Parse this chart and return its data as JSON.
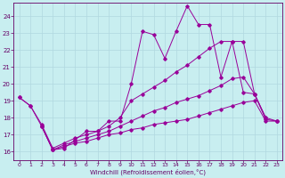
{
  "xlabel": "Windchill (Refroidissement éolien,°C)",
  "background_color": "#c8eef0",
  "grid_color": "#b0d8e0",
  "line_color": "#990099",
  "xlim": [
    -0.5,
    23.5
  ],
  "ylim": [
    15.5,
    24.8
  ],
  "yticks": [
    16,
    17,
    18,
    19,
    20,
    21,
    22,
    23,
    24
  ],
  "line1_x": [
    0,
    1,
    2,
    3,
    4,
    5,
    6,
    7,
    8,
    9,
    10,
    11,
    12,
    13,
    14,
    15,
    16,
    17,
    18,
    19,
    20,
    21,
    22
  ],
  "line1_y": [
    19.2,
    18.7,
    17.5,
    16.1,
    16.2,
    16.7,
    17.2,
    17.2,
    17.8,
    17.8,
    20.0,
    23.1,
    22.9,
    21.5,
    23.1,
    24.6,
    23.5,
    23.5,
    20.4,
    22.5,
    19.5,
    19.4,
    18.0
  ],
  "line2_x": [
    0,
    1,
    2,
    3,
    4,
    5,
    6,
    7,
    8,
    9,
    10,
    11,
    12,
    13,
    14,
    15,
    16,
    17,
    18,
    19,
    20,
    21,
    22,
    23
  ],
  "line2_y": [
    19.2,
    18.7,
    17.6,
    16.2,
    16.5,
    16.8,
    17.0,
    17.2,
    17.5,
    18.0,
    19.0,
    19.4,
    19.8,
    20.2,
    20.7,
    21.1,
    21.6,
    22.1,
    22.5,
    22.5,
    22.5,
    19.4,
    18.0,
    17.8
  ],
  "line3_x": [
    2,
    3,
    4,
    5,
    6,
    7,
    8,
    9,
    10,
    11,
    12,
    13,
    14,
    15,
    16,
    17,
    18,
    19,
    20,
    21,
    22,
    23
  ],
  "line3_y": [
    17.5,
    16.1,
    16.4,
    16.6,
    16.8,
    17.0,
    17.2,
    17.5,
    17.8,
    18.1,
    18.4,
    18.6,
    18.9,
    19.1,
    19.3,
    19.6,
    19.9,
    20.3,
    20.4,
    19.4,
    17.9,
    17.8
  ],
  "line4_x": [
    2,
    3,
    4,
    5,
    6,
    7,
    8,
    9,
    10,
    11,
    12,
    13,
    14,
    15,
    16,
    17,
    18,
    19,
    20,
    21,
    22,
    23
  ],
  "line4_y": [
    17.5,
    16.1,
    16.3,
    16.5,
    16.6,
    16.8,
    17.0,
    17.1,
    17.3,
    17.4,
    17.6,
    17.7,
    17.8,
    17.9,
    18.1,
    18.3,
    18.5,
    18.7,
    18.9,
    19.0,
    17.8,
    17.8
  ]
}
